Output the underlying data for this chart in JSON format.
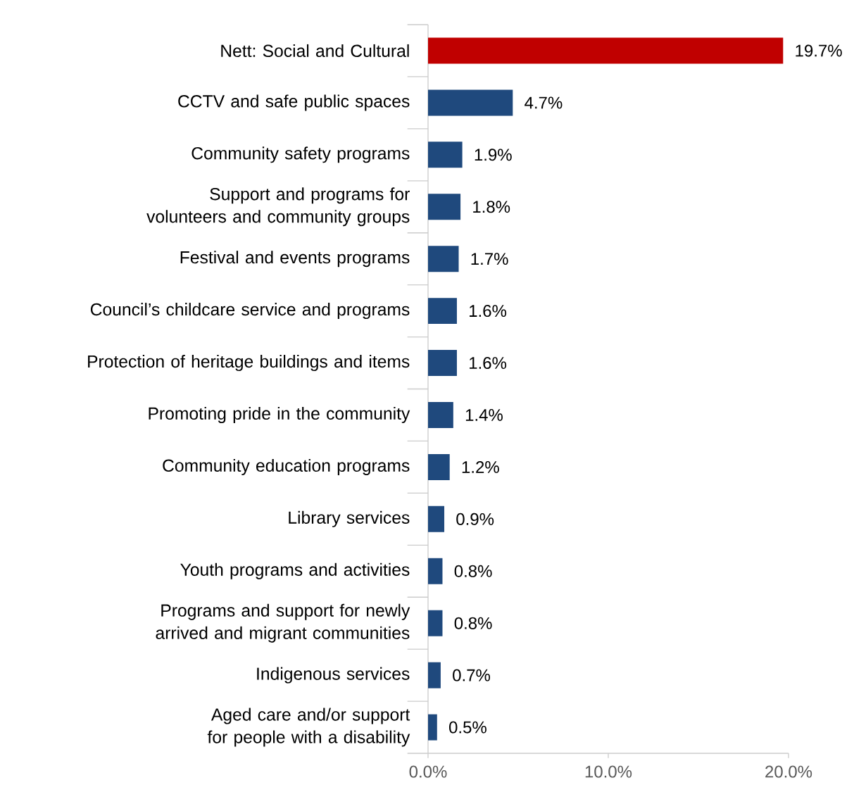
{
  "chart_data": {
    "type": "bar",
    "orientation": "horizontal",
    "categories": [
      "Nett: Social and Cultural",
      "CCTV and safe public spaces",
      "Community safety programs",
      "Support and programs for volunteers and community groups",
      "Festival and events programs",
      "Council’s childcare service and programs",
      "Protection of heritage buildings and items",
      "Promoting pride in the community",
      "Community education programs",
      "Library services",
      "Youth programs and activities",
      "Programs and support for newly arrived and migrant communities",
      "Indigenous services",
      "Aged care and/or support for people with a disability"
    ],
    "values": [
      19.7,
      4.7,
      1.9,
      1.8,
      1.7,
      1.6,
      1.6,
      1.4,
      1.2,
      0.9,
      0.8,
      0.8,
      0.7,
      0.5
    ],
    "value_labels": [
      "19.7%",
      "4.7%",
      "1.9%",
      "1.8%",
      "1.7%",
      "1.6%",
      "1.6%",
      "1.4%",
      "1.2%",
      "0.9%",
      "0.8%",
      "0.8%",
      "0.7%",
      "0.5%"
    ],
    "colors": [
      "#c00000",
      "#1f497d",
      "#1f497d",
      "#1f497d",
      "#1f497d",
      "#1f497d",
      "#1f497d",
      "#1f497d",
      "#1f497d",
      "#1f497d",
      "#1f497d",
      "#1f497d",
      "#1f497d",
      "#1f497d"
    ],
    "xlim": [
      0,
      20
    ],
    "xticks": [
      {
        "value": 0,
        "label": "0.0%"
      },
      {
        "value": 10,
        "label": "10.0%"
      },
      {
        "value": 20,
        "label": "20.0%"
      }
    ],
    "grid": false
  }
}
